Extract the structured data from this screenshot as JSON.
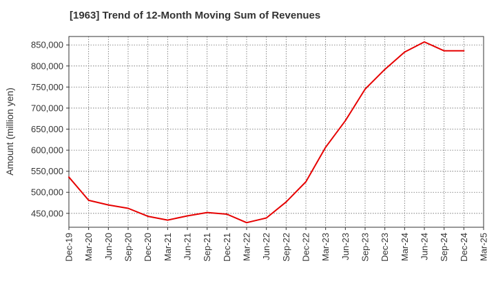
{
  "chart_data": {
    "type": "line",
    "title": "[1963]  Trend of 12-Month Moving Sum of Revenues",
    "xlabel": "",
    "ylabel": "Amount (million yen)",
    "ylim": [
      417000,
      870000
    ],
    "yticks": [
      450000,
      500000,
      550000,
      600000,
      650000,
      700000,
      750000,
      800000,
      850000
    ],
    "ytick_labels": [
      "450,000",
      "500,000",
      "550,000",
      "600,000",
      "650,000",
      "700,000",
      "750,000",
      "800,000",
      "850,000"
    ],
    "categories": [
      "Dec-19",
      "Mar-20",
      "Jun-20",
      "Sep-20",
      "Dec-20",
      "Mar-21",
      "Jun-21",
      "Sep-21",
      "Dec-21",
      "Mar-22",
      "Jun-22",
      "Sep-22",
      "Dec-22",
      "Mar-23",
      "Jun-23",
      "Sep-23",
      "Dec-23",
      "Mar-24",
      "Jun-24",
      "Sep-24",
      "Dec-24",
      "Mar-25"
    ],
    "grid": true,
    "series": [
      {
        "color": "#e60000",
        "values": [
          536000,
          481000,
          470000,
          462000,
          443000,
          434000,
          444000,
          452000,
          448000,
          428000,
          439000,
          477000,
          525000,
          607000,
          670000,
          745000,
          792000,
          833000,
          857000,
          836000,
          836000,
          null
        ]
      }
    ]
  }
}
